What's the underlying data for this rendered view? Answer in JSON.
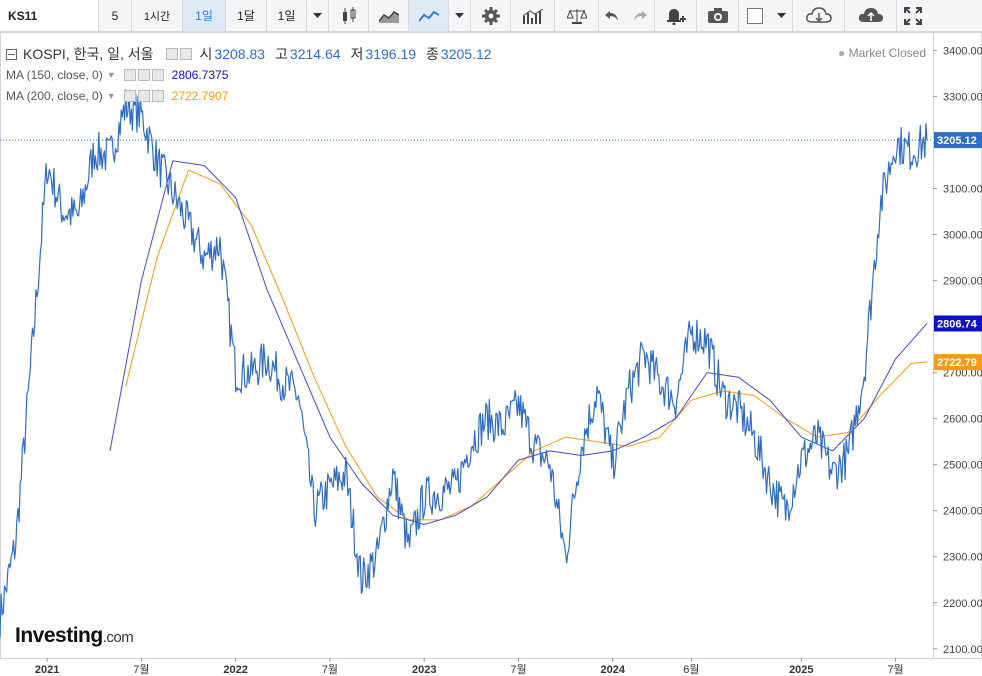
{
  "toolbar": {
    "symbol": "KS11",
    "intervals": [
      "5",
      "1시간",
      "1일",
      "1달",
      "1일"
    ],
    "icons": [
      "chevron-down-icon",
      "candlestick-icon",
      "area-chart-icon",
      "line-chart-icon",
      "chevron-down-icon",
      "gear-icon",
      "indicators-icon",
      "compare-icon",
      "undo-icon",
      "redo-icon",
      "alert-bell-icon",
      "camera-icon",
      "square-icon",
      "chevron-down-icon",
      "cloud-download-icon",
      "cloud-upload-icon",
      "fullscreen-icon"
    ]
  },
  "legend": {
    "title": "KOSPI, 한국, 일, 서울",
    "open_label": "시",
    "open": "3208.83",
    "high_label": "고",
    "high": "3214.64",
    "low_label": "저",
    "low": "3196.19",
    "close_label": "종",
    "close": "3205.12",
    "ma150_label": "MA (150, close, 0)",
    "ma150": "2806.7375",
    "ma200_label": "MA (200, close, 0)",
    "ma200": "2722.7907"
  },
  "market_status": "Market Closed",
  "branding": {
    "name": "Investing",
    "suffix": ".com"
  },
  "colors": {
    "price": "#2f6dc4",
    "ma150": "#4848d0",
    "ma200": "#f39c12",
    "last_price_badge": "#2f6dc4",
    "ma150_badge": "#1010cc",
    "ma200_badge": "#f39c12"
  },
  "chart_data": {
    "type": "line",
    "title": "KOSPI, 한국, 일, 서울",
    "ylim": [
      2080,
      3440
    ],
    "yticks": [
      "2100.00",
      "2200.00",
      "2300.00",
      "2400.00",
      "2500.00",
      "2600.00",
      "2700.00",
      "2800.00",
      "2900.00",
      "3000.00",
      "3100.00",
      "3200.00",
      "3300.00",
      "3400.00"
    ],
    "xlabels": [
      "2021",
      "7월",
      "2022",
      "7월",
      "2023",
      "7월",
      "2024",
      "6월",
      "2025",
      "7월"
    ],
    "xlabel_dates": [
      "2021-01",
      "2021-07",
      "2022-01",
      "2022-07",
      "2023-01",
      "2023-07",
      "2024-01",
      "2024-06",
      "2025-01",
      "2025-07"
    ],
    "last_values": {
      "price": "3205.12",
      "ma150": "2806.74",
      "ma200": "2722.79"
    },
    "series": [
      {
        "name": "KOSPI",
        "x": [
          "2020-10",
          "2020-11",
          "2020-12",
          "2021-01",
          "2021-02",
          "2021-03",
          "2021-04",
          "2021-05",
          "2021-06",
          "2021-07",
          "2021-08",
          "2021-09",
          "2021-10",
          "2021-11",
          "2021-12",
          "2022-01",
          "2022-02",
          "2022-03",
          "2022-04",
          "2022-05",
          "2022-06",
          "2022-07",
          "2022-08",
          "2022-09",
          "2022-10",
          "2022-11",
          "2022-12",
          "2023-01",
          "2023-02",
          "2023-03",
          "2023-04",
          "2023-05",
          "2023-06",
          "2023-07",
          "2023-08",
          "2023-09",
          "2023-10",
          "2023-11",
          "2023-12",
          "2024-01",
          "2024-02",
          "2024-03",
          "2024-04",
          "2024-05",
          "2024-06",
          "2024-07",
          "2024-08",
          "2024-09",
          "2024-10",
          "2024-11",
          "2024-12",
          "2025-01",
          "2025-02",
          "2025-03",
          "2025-04",
          "2025-05",
          "2025-06",
          "2025-07",
          "2025-08",
          "2025-09"
        ],
        "values": [
          2170,
          2330,
          2730,
          3150,
          3050,
          3040,
          3180,
          3170,
          3280,
          3260,
          3160,
          3090,
          3020,
          2950,
          2980,
          2700,
          2700,
          2730,
          2680,
          2650,
          2400,
          2450,
          2480,
          2250,
          2300,
          2480,
          2320,
          2430,
          2440,
          2450,
          2550,
          2600,
          2580,
          2630,
          2540,
          2500,
          2300,
          2540,
          2660,
          2500,
          2660,
          2740,
          2680,
          2640,
          2790,
          2770,
          2650,
          2620,
          2560,
          2460,
          2400,
          2510,
          2560,
          2480,
          2520,
          2700,
          3060,
          3200,
          3180,
          3205
        ]
      },
      {
        "name": "MA (150, close, 0)",
        "x": [
          "2021-05",
          "2021-07",
          "2021-09",
          "2021-11",
          "2022-01",
          "2022-03",
          "2022-05",
          "2022-07",
          "2022-09",
          "2022-11",
          "2023-01",
          "2023-03",
          "2023-05",
          "2023-07",
          "2023-09",
          "2023-11",
          "2024-01",
          "2024-03",
          "2024-05",
          "2024-07",
          "2024-09",
          "2024-11",
          "2025-01",
          "2025-03",
          "2025-05",
          "2025-07",
          "2025-09"
        ],
        "values": [
          2530,
          2900,
          3160,
          3150,
          3080,
          2880,
          2720,
          2560,
          2460,
          2390,
          2370,
          2390,
          2430,
          2510,
          2530,
          2520,
          2530,
          2560,
          2600,
          2700,
          2690,
          2640,
          2560,
          2530,
          2600,
          2730,
          2807
        ]
      },
      {
        "name": "MA (200, close, 0)",
        "x": [
          "2021-06",
          "2021-08",
          "2021-10",
          "2021-12",
          "2022-02",
          "2022-04",
          "2022-06",
          "2022-08",
          "2022-10",
          "2022-12",
          "2023-02",
          "2023-04",
          "2023-06",
          "2023-08",
          "2023-10",
          "2023-12",
          "2024-02",
          "2024-04",
          "2024-06",
          "2024-08",
          "2024-10",
          "2024-12",
          "2025-02",
          "2025-04",
          "2025-06",
          "2025-08",
          "2025-09"
        ],
        "values": [
          2670,
          2950,
          3140,
          3110,
          3020,
          2860,
          2690,
          2540,
          2430,
          2380,
          2380,
          2410,
          2470,
          2530,
          2560,
          2550,
          2540,
          2560,
          2640,
          2660,
          2650,
          2600,
          2560,
          2570,
          2650,
          2720,
          2723
        ]
      }
    ]
  }
}
